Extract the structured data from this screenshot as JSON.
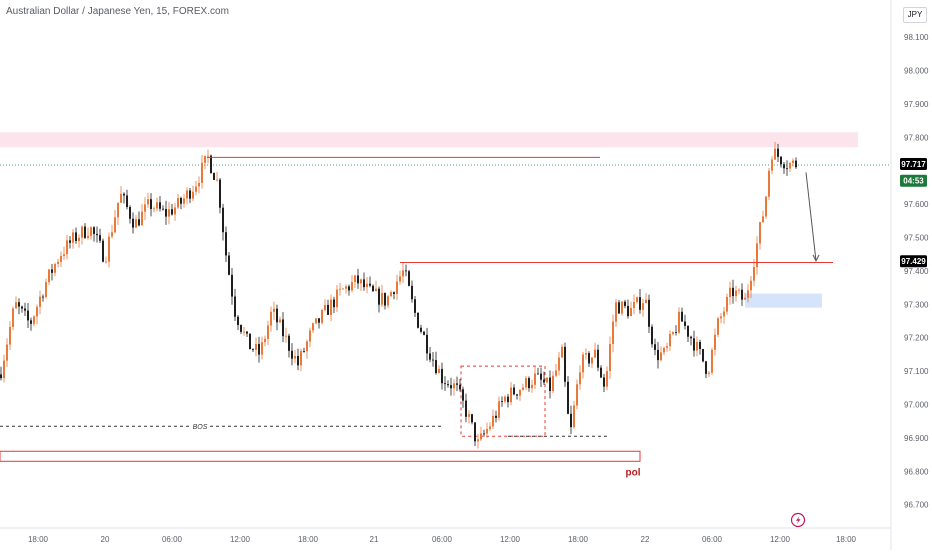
{
  "header": {
    "symbol_title": "Australian Dollar / Japanese Yen, 15, FOREX.com",
    "currency": "JPY"
  },
  "colors": {
    "up": "#e8793a",
    "down": "#1e1e1e",
    "level_line": "#e53935",
    "supply_zone": "#fbe4ec",
    "demand_zone": "#d5e3fb",
    "current_price_tag": "#000000",
    "countdown_tag": "#1b7a3a",
    "level_tag": "#000000",
    "pol_label": "#b71c1c"
  },
  "chart_data": {
    "type": "candlestick",
    "symbol": "AUDJPY",
    "timeframe": "15",
    "y_axis": {
      "ticks": [
        "98.100",
        "98.000",
        "97.900",
        "97.800",
        "97.600",
        "97.500",
        "97.400",
        "97.300",
        "97.200",
        "97.100",
        "97.000",
        "96.900",
        "96.800",
        "96.700"
      ],
      "range": [
        96.65,
        98.16
      ]
    },
    "x_axis": {
      "ticks": [
        "18:00",
        "20",
        "06:00",
        "12:00",
        "18:00",
        "21",
        "06:00",
        "12:00",
        "18:00",
        "22",
        "06:00",
        "12:00",
        "18:00"
      ]
    },
    "price_path": [
      [
        0,
        97.09
      ],
      [
        15,
        97.3
      ],
      [
        30,
        97.24
      ],
      [
        45,
        97.36
      ],
      [
        60,
        97.45
      ],
      [
        75,
        97.5
      ],
      [
        90,
        97.53
      ],
      [
        105,
        97.44
      ],
      [
        120,
        97.63
      ],
      [
        135,
        97.54
      ],
      [
        150,
        97.6
      ],
      [
        165,
        97.57
      ],
      [
        180,
        97.6
      ],
      [
        195,
        97.66
      ],
      [
        208,
        97.74
      ],
      [
        218,
        97.66
      ],
      [
        226,
        97.45
      ],
      [
        235,
        97.28
      ],
      [
        248,
        97.18
      ],
      [
        260,
        97.15
      ],
      [
        272,
        97.28
      ],
      [
        285,
        97.2
      ],
      [
        298,
        97.12
      ],
      [
        312,
        97.22
      ],
      [
        326,
        97.28
      ],
      [
        342,
        97.34
      ],
      [
        357,
        97.37
      ],
      [
        372,
        97.33
      ],
      [
        386,
        97.31
      ],
      [
        397,
        97.37
      ],
      [
        404,
        97.4
      ],
      [
        414,
        97.28
      ],
      [
        428,
        97.17
      ],
      [
        442,
        97.08
      ],
      [
        456,
        97.05
      ],
      [
        466,
        96.98
      ],
      [
        478,
        96.88
      ],
      [
        490,
        96.94
      ],
      [
        505,
        97.02
      ],
      [
        520,
        97.05
      ],
      [
        535,
        97.08
      ],
      [
        550,
        97.05
      ],
      [
        562,
        97.15
      ],
      [
        570,
        96.9
      ],
      [
        580,
        97.12
      ],
      [
        595,
        97.15
      ],
      [
        605,
        97.05
      ],
      [
        615,
        97.3
      ],
      [
        630,
        97.28
      ],
      [
        645,
        97.32
      ],
      [
        655,
        97.15
      ],
      [
        665,
        97.15
      ],
      [
        680,
        97.26
      ],
      [
        695,
        97.18
      ],
      [
        708,
        97.1
      ],
      [
        718,
        97.24
      ],
      [
        732,
        97.34
      ],
      [
        745,
        97.31
      ],
      [
        755,
        97.45
      ],
      [
        765,
        97.6
      ],
      [
        771,
        97.76
      ],
      [
        780,
        97.74
      ],
      [
        788,
        97.72
      ],
      [
        797,
        97.72
      ]
    ],
    "levels": [
      {
        "name": "high-level",
        "y": 97.74,
        "x_from": 207,
        "x_to": 600
      },
      {
        "name": "mid-level",
        "y": 97.425,
        "x_from": 400,
        "x_to": 833
      },
      {
        "name": "bos-level",
        "y": 96.935,
        "x_from": 0,
        "x_to": 442,
        "style": "dashed",
        "label": "BOS"
      },
      {
        "name": "low-dashed-level",
        "y": 96.905,
        "x_from": 508,
        "x_to": 607,
        "style": "dashed"
      }
    ],
    "zones": [
      {
        "name": "supply-zone",
        "y_top": 97.815,
        "y_bottom": 97.77,
        "x_from": 0,
        "x_to": 858
      },
      {
        "name": "demand-zone",
        "y_top": 97.332,
        "y_bottom": 97.29,
        "x_from": 745,
        "x_to": 822
      },
      {
        "name": "pol-zone",
        "y_top": 96.86,
        "y_bottom": 96.83,
        "x_from": 0,
        "x_to": 640,
        "label": "pol"
      },
      {
        "name": "consolidation-box",
        "y_top": 97.115,
        "y_bottom": 96.905,
        "x_from": 461,
        "x_to": 545
      }
    ],
    "projection_arrow": {
      "from": [
        806,
        97.695
      ],
      "to": [
        816,
        97.43
      ]
    },
    "last_price": "97.717",
    "countdown": "04:53",
    "level_price_tag": "97.429"
  }
}
